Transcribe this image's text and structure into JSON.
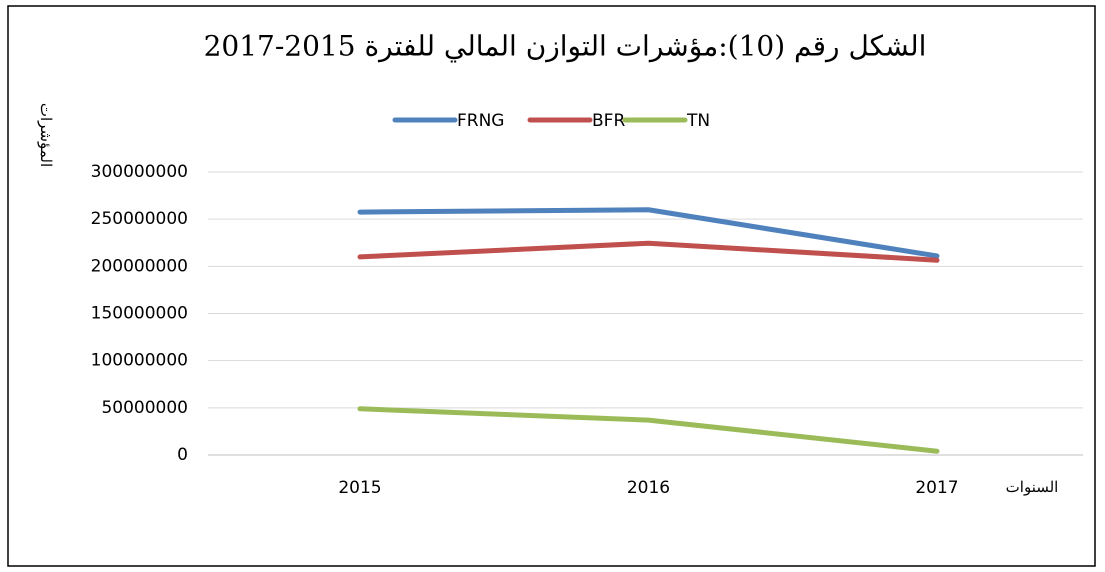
{
  "chart_data": {
    "type": "line",
    "title": "الشكل رقم (10):مؤشرات التوازن المالي للفترة 2015-2017",
    "y_label": "المؤشرات",
    "x_label": "السنوات",
    "categories": [
      "2015",
      "2016",
      "2017"
    ],
    "series": [
      {
        "name": "FRNG",
        "color": "#4f81bd",
        "values": [
          257500000,
          260000000,
          211000000
        ]
      },
      {
        "name": "BFR",
        "color": "#c0504d",
        "values": [
          210000000,
          224500000,
          206500000
        ]
      },
      {
        "name": "TN",
        "color": "#9bbb59",
        "values": [
          49000000,
          37000000,
          4000000
        ]
      }
    ],
    "ylim": [
      0,
      300000000
    ],
    "yticks": [
      0,
      50000000,
      100000000,
      150000000,
      200000000,
      250000000,
      300000000
    ],
    "grid": true,
    "legend": "top"
  }
}
